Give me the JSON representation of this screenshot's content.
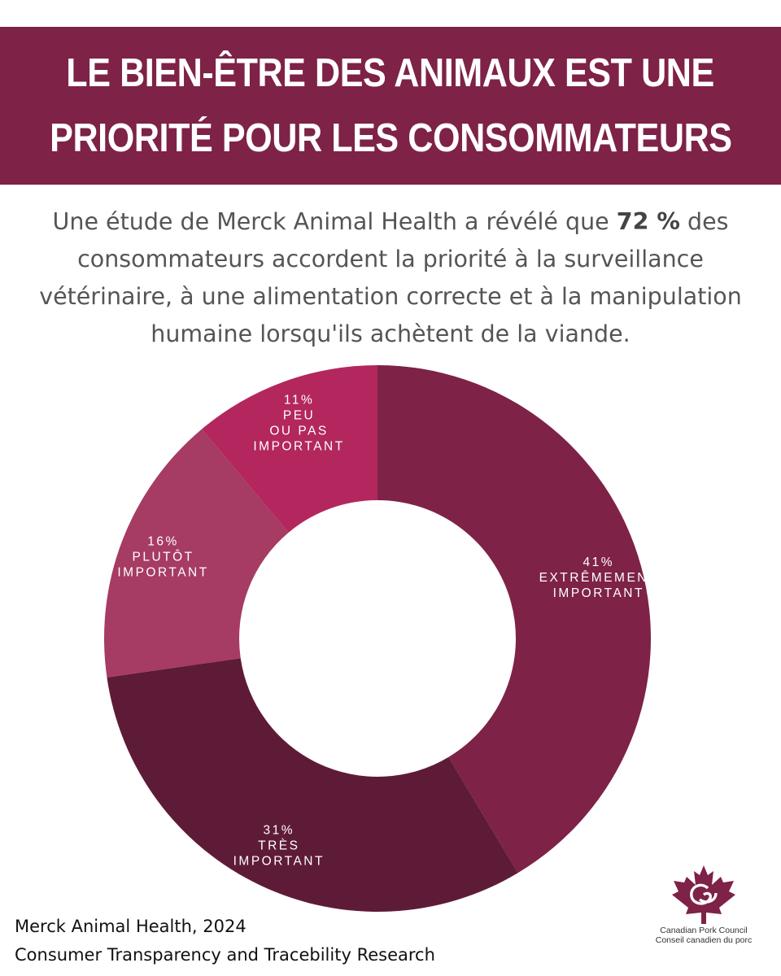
{
  "banner": {
    "line1": "LE BIEN-ÊTRE DES ANIMAUX EST UNE",
    "line2": "PRIORITÉ POUR LES CONSOMMATEURS"
  },
  "intro": {
    "before": "Une étude de Merck Animal Health a révélé que ",
    "highlight": "72 %",
    "after": " des consommateurs accordent la priorité à la surveillance vétérinaire, à une alimentation correcte et à la manipulation humaine lorsqu'ils achètent de la viande."
  },
  "chart_data": {
    "type": "pie",
    "style": "donut",
    "title": "",
    "slices": [
      {
        "label_lines": [
          "41%",
          "EXTRÊMEMENT",
          "IMPORTANT"
        ],
        "name": "Extrêmement important",
        "value": 41,
        "color": "#7e2247"
      },
      {
        "label_lines": [
          "31%",
          "TRÈS",
          "IMPORTANT"
        ],
        "name": "Très important",
        "value": 31,
        "color": "#5e1b37"
      },
      {
        "label_lines": [
          "16%",
          "PLUTÔT",
          "IMPORTANT"
        ],
        "name": "Plutôt important",
        "value": 16,
        "color": "#a63b63"
      },
      {
        "label_lines": [
          "11%",
          "PEU",
          "OU PAS",
          "IMPORTANT"
        ],
        "name": "Peu ou pas important",
        "value": 11,
        "color": "#b3275e"
      }
    ]
  },
  "source": {
    "line1": "Merck Animal Health, 2024",
    "line2": "Consumer Transparency and Tracebility Research"
  },
  "logo": {
    "line1": "Canadian Pork Council",
    "line2": "Conseil canadien du porc",
    "color": "#7e2247"
  },
  "colors": {
    "accent": "#7e2247",
    "background": "#ffffff"
  }
}
